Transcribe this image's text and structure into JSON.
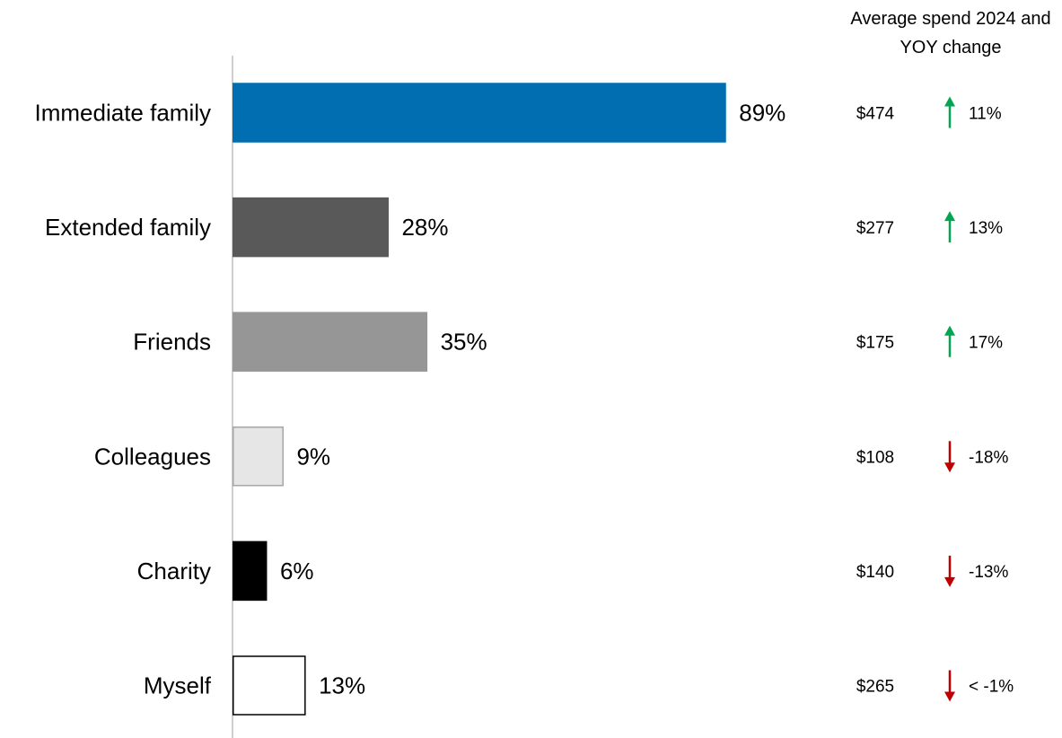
{
  "chart_data": {
    "type": "bar",
    "orientation": "horizontal",
    "categories": [
      "Immediate family",
      "Extended family",
      "Friends",
      "Colleagues",
      "Charity",
      "Myself"
    ],
    "values": [
      89,
      28,
      35,
      9,
      6,
      13
    ],
    "value_labels": [
      "89%",
      "28%",
      "35%",
      "9%",
      "6%",
      "13%"
    ],
    "bar_fills": [
      "#006eb0",
      "#595959",
      "#969696",
      "#e6e6e6",
      "#000000",
      "#ffffff"
    ],
    "bar_strokes": [
      "#006eb0",
      "#595959",
      "#969696",
      "#a6a6a6",
      "#000000",
      "#000000"
    ],
    "xlim": [
      0,
      100
    ],
    "grid": false,
    "side_table": {
      "header_line1": "Average spend 2024 and",
      "header_line2": "YOY change",
      "rows": [
        {
          "spend": "$474",
          "direction": "up",
          "change": "11%"
        },
        {
          "spend": "$277",
          "direction": "up",
          "change": "13%"
        },
        {
          "spend": "$175",
          "direction": "up",
          "change": "17%"
        },
        {
          "spend": "$108",
          "direction": "down",
          "change": "-18%"
        },
        {
          "spend": "$140",
          "direction": "down",
          "change": "-13%"
        },
        {
          "spend": "$265",
          "direction": "down",
          "change": "< -1%"
        }
      ],
      "up_color": "#00a651",
      "down_color": "#c00000"
    }
  }
}
